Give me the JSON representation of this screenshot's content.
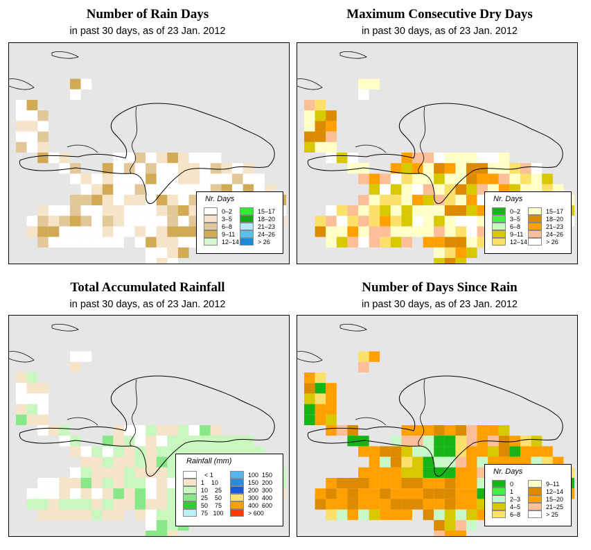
{
  "panels": [
    {
      "id": "rain-days",
      "title": "Number of Rain Days",
      "subtitle": "in past 30 days, as of  23 Jan. 2012",
      "legend": {
        "title": "Nr. Days",
        "items": [
          {
            "label": "0–2",
            "color": "#ffffff"
          },
          {
            "label": "3–5",
            "color": "#f5e4c8"
          },
          {
            "label": "6–8",
            "color": "#e2c898"
          },
          {
            "label": "9–11",
            "color": "#d2aa55"
          },
          {
            "label": "12–14",
            "color": "#d4f7d0"
          },
          {
            "label": "15–17",
            "color": "#33ee33"
          },
          {
            "label": "18–20",
            "color": "#12aa12"
          },
          {
            "label": "21–23",
            "color": "#b5e8f8"
          },
          {
            "label": "24–26",
            "color": "#5ac0f0"
          },
          {
            "label": "> 26",
            "color": "#1a8ad8"
          }
        ]
      }
    },
    {
      "id": "dry-days",
      "title": "Maximum Consecutive Dry Days",
      "subtitle": "in past 30 days, as of  23 Jan. 2012",
      "legend": {
        "title": "Nr. Days",
        "items": [
          {
            "label": "0–2",
            "color": "#16b416"
          },
          {
            "label": "3–5",
            "color": "#44ee44"
          },
          {
            "label": "6–8",
            "color": "#c8f7c8"
          },
          {
            "label": "9–11",
            "color": "#d8c800"
          },
          {
            "label": "12–14",
            "color": "#fbe06a"
          },
          {
            "label": "15–17",
            "color": "#ffffc8"
          },
          {
            "label": "18–20",
            "color": "#dc8a00"
          },
          {
            "label": "21–23",
            "color": "#ff9f00"
          },
          {
            "label": "24–26",
            "color": "#fcbf98"
          },
          {
            "label": "> 26",
            "color": "#ffffff"
          }
        ]
      }
    },
    {
      "id": "rainfall",
      "title": "Total Accumulated Rainfall",
      "subtitle": "in past 30 days, as of  23 Jan. 2012",
      "legend": {
        "title": "Rainfall (mm)",
        "items": [
          {
            "label": "  < 1",
            "color": "#ffffff"
          },
          {
            "label": "1    10",
            "color": "#f5e4c8"
          },
          {
            "label": "10    25",
            "color": "#c8f7c0"
          },
          {
            "label": "25    50",
            "color": "#88e888"
          },
          {
            "label": "50    75",
            "color": "#33cc33"
          },
          {
            "label": "75   100",
            "color": "#b8f0f8"
          },
          {
            "label": "100  150",
            "color": "#5ab4ec"
          },
          {
            "label": "150  200",
            "color": "#2a8ae0"
          },
          {
            "label": "200  300",
            "color": "#1a5ad8"
          },
          {
            "label": "300  400",
            "color": "#ffe070"
          },
          {
            "label": "400  600",
            "color": "#ffa000"
          },
          {
            "label": "> 600",
            "color": "#ff3a00"
          }
        ]
      }
    },
    {
      "id": "since-rain",
      "title": "Number of Days Since Rain",
      "subtitle": "in past 30 days, as of  23 Jan. 2012",
      "legend": {
        "title": "Nr. Days",
        "items": [
          {
            "label": "0",
            "color": "#16b416"
          },
          {
            "label": "1",
            "color": "#44ee44"
          },
          {
            "label": "2–3",
            "color": "#c8f7c8"
          },
          {
            "label": "4–5",
            "color": "#d8c800"
          },
          {
            "label": "6–8",
            "color": "#fbe06a"
          },
          {
            "label": "9–11",
            "color": "#ffffc8"
          },
          {
            "label": "12–14",
            "color": "#dc8a00"
          },
          {
            "label": "15–20",
            "color": "#ff9f00"
          },
          {
            "label": "21–25",
            "color": "#fcbf98"
          },
          {
            "label": "> 25",
            "color": "#ffffff"
          }
        ]
      }
    }
  ]
}
